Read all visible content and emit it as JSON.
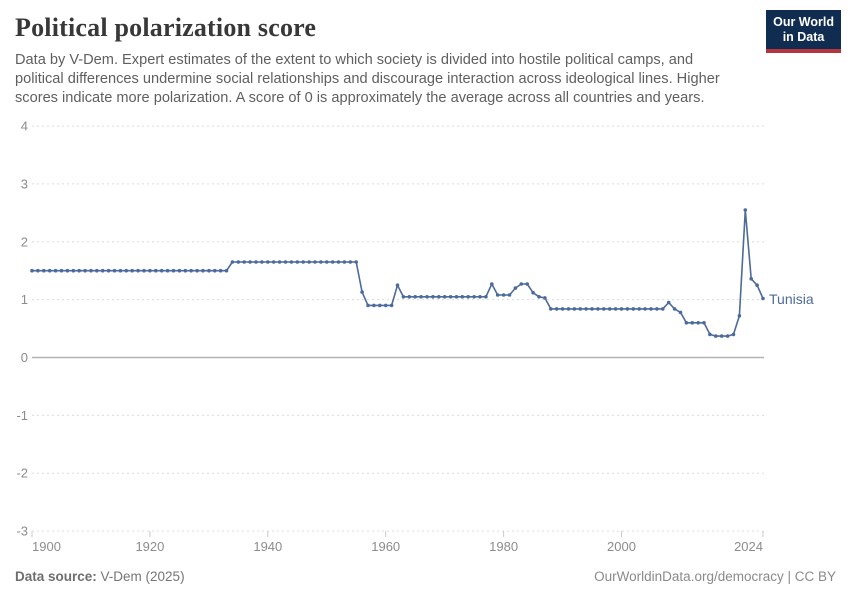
{
  "header": {
    "title": "Political polarization score",
    "subtitle": "Data by V-Dem. Expert estimates of the extent to which society is divided into hostile political camps, and political differences undermine social relationships and discourage interaction across ideological lines. Higher scores indicate more polarization. A score of 0 is approximately the average across all countries and years.",
    "logo": {
      "line1": "Our World",
      "line2": "in Data"
    }
  },
  "chart_data": {
    "type": "line",
    "title": "Political polarization score",
    "xlabel": "",
    "ylabel": "",
    "xlim": [
      1900,
      2024
    ],
    "ylim": [
      -3,
      4
    ],
    "xticks": [
      1900,
      1920,
      1940,
      1960,
      1980,
      2000,
      2024
    ],
    "yticks": [
      -3,
      -2,
      -1,
      0,
      1,
      2,
      3,
      4
    ],
    "grid": "horizontal-dashed, zero line solid",
    "legend_position": "end-of-line label",
    "colors": {
      "line": "#4C6A9C",
      "grid": "#dcdcdc",
      "zero_line": "#b3b3b3",
      "axis_text": "#8c8c8c",
      "tick": "#c8c8c8"
    },
    "years": [
      1900,
      1901,
      1902,
      1903,
      1904,
      1905,
      1906,
      1907,
      1908,
      1909,
      1910,
      1911,
      1912,
      1913,
      1914,
      1915,
      1916,
      1917,
      1918,
      1919,
      1920,
      1921,
      1922,
      1923,
      1924,
      1925,
      1926,
      1927,
      1928,
      1929,
      1930,
      1931,
      1932,
      1933,
      1934,
      1935,
      1936,
      1937,
      1938,
      1939,
      1940,
      1941,
      1942,
      1943,
      1944,
      1945,
      1946,
      1947,
      1948,
      1949,
      1950,
      1951,
      1952,
      1953,
      1954,
      1955,
      1956,
      1957,
      1958,
      1959,
      1960,
      1961,
      1962,
      1963,
      1964,
      1965,
      1966,
      1967,
      1968,
      1969,
      1970,
      1971,
      1972,
      1973,
      1974,
      1975,
      1976,
      1977,
      1978,
      1979,
      1980,
      1981,
      1982,
      1983,
      1984,
      1985,
      1986,
      1987,
      1988,
      1989,
      1990,
      1991,
      1992,
      1993,
      1994,
      1995,
      1996,
      1997,
      1998,
      1999,
      2000,
      2001,
      2002,
      2003,
      2004,
      2005,
      2006,
      2007,
      2008,
      2009,
      2010,
      2011,
      2012,
      2013,
      2014,
      2015,
      2016,
      2017,
      2018,
      2019,
      2020,
      2021,
      2022,
      2023,
      2024
    ],
    "series": [
      {
        "name": "Tunisia",
        "color": "#4C6A9C",
        "values": [
          1.5,
          1.5,
          1.5,
          1.5,
          1.5,
          1.5,
          1.5,
          1.5,
          1.5,
          1.5,
          1.5,
          1.5,
          1.5,
          1.5,
          1.5,
          1.5,
          1.5,
          1.5,
          1.5,
          1.5,
          1.5,
          1.5,
          1.5,
          1.5,
          1.5,
          1.5,
          1.5,
          1.5,
          1.5,
          1.5,
          1.5,
          1.5,
          1.5,
          1.5,
          1.65,
          1.65,
          1.65,
          1.65,
          1.65,
          1.65,
          1.65,
          1.65,
          1.65,
          1.65,
          1.65,
          1.65,
          1.65,
          1.65,
          1.65,
          1.65,
          1.65,
          1.65,
          1.65,
          1.65,
          1.65,
          1.65,
          1.13,
          0.9,
          0.9,
          0.9,
          0.9,
          0.9,
          1.25,
          1.05,
          1.05,
          1.05,
          1.05,
          1.05,
          1.05,
          1.05,
          1.05,
          1.05,
          1.05,
          1.05,
          1.05,
          1.05,
          1.05,
          1.05,
          1.27,
          1.08,
          1.08,
          1.08,
          1.2,
          1.27,
          1.27,
          1.12,
          1.05,
          1.03,
          0.84,
          0.84,
          0.84,
          0.84,
          0.84,
          0.84,
          0.84,
          0.84,
          0.84,
          0.84,
          0.84,
          0.84,
          0.84,
          0.84,
          0.84,
          0.84,
          0.84,
          0.84,
          0.84,
          0.84,
          0.95,
          0.84,
          0.78,
          0.6,
          0.6,
          0.6,
          0.6,
          0.4,
          0.37,
          0.37,
          0.37,
          0.4,
          0.72,
          2.55,
          1.36,
          1.25,
          1.02
        ]
      }
    ]
  },
  "footer": {
    "source_label": "Data source:",
    "source_value": " V-Dem (2025)",
    "credit": "OurWorldinData.org/democracy | CC BY"
  }
}
